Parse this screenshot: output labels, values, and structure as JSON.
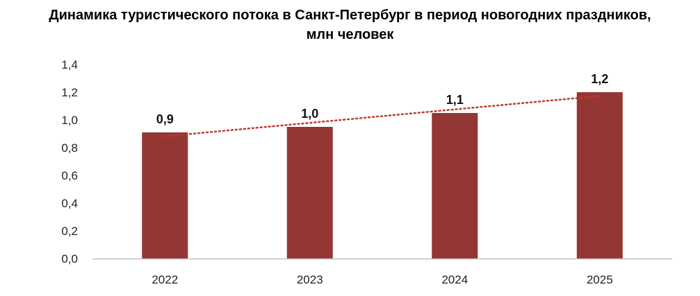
{
  "chart_data": {
    "type": "bar",
    "title_line1": "Динамика туристического потока в Санкт-Петербург в период новогодних праздников,",
    "title_line2": "млн человек",
    "categories": [
      "2022",
      "2023",
      "2024",
      "2025"
    ],
    "values": [
      0.91,
      0.95,
      1.05,
      1.2
    ],
    "data_labels": [
      "0,9",
      "1,0",
      "1,1",
      "1,2"
    ],
    "y_ticks": [
      0,
      0.2,
      0.4,
      0.6,
      0.8,
      1.0,
      1.2,
      1.4
    ],
    "y_tick_labels": [
      "0,0",
      "0,2",
      "0,4",
      "0,6",
      "0,8",
      "1,0",
      "1,2",
      "1,4"
    ],
    "ylim": [
      0,
      1.4
    ],
    "grid": false,
    "legend": "none",
    "trendline": {
      "type": "linear",
      "style": "dotted",
      "color": "#C0392B"
    },
    "bar_color": "#943634",
    "axis_color": "#BFBFBF"
  }
}
